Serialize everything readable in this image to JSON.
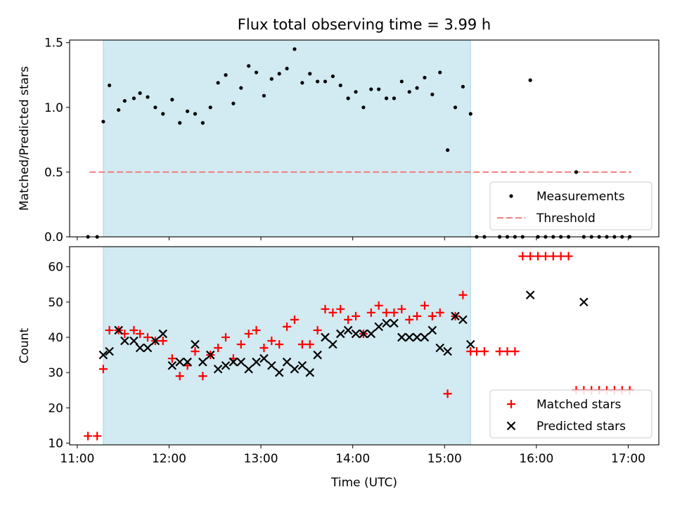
{
  "title": "Flux total observing time = 3.99 h",
  "shade_color": "#add8e6",
  "threshold_color": "#f08080",
  "chart_data": [
    {
      "type": "scatter",
      "ylabel": "Matched/Predicted stars",
      "xlabel": "",
      "xlim": [
        "10:55",
        "17:20"
      ],
      "ylim": [
        0,
        1.52
      ],
      "yticks": [
        "0.0",
        "0.5",
        "1.0",
        "1.5"
      ],
      "ytick_values": [
        0,
        0.5,
        1.0,
        1.5
      ],
      "shaded_span": [
        "11:17",
        "15:17"
      ],
      "threshold": {
        "y": 0.5,
        "x": [
          "11:08",
          "17:02"
        ]
      },
      "legend": {
        "placement": "lower right",
        "entries": [
          "Measurements",
          "Threshold"
        ]
      },
      "series": [
        {
          "name": "Measurements",
          "marker": "dot",
          "color": "#000000",
          "x": [
            "11:07",
            "11:13",
            "11:17",
            "11:21",
            "11:27",
            "11:31",
            "11:37",
            "11:41",
            "11:46",
            "11:51",
            "11:56",
            "12:02",
            "12:07",
            "12:12",
            "12:17",
            "12:22",
            "12:27",
            "12:32",
            "12:37",
            "12:42",
            "12:47",
            "12:52",
            "12:57",
            "13:02",
            "13:07",
            "13:12",
            "13:17",
            "13:22",
            "13:27",
            "13:32",
            "13:37",
            "13:42",
            "13:47",
            "13:52",
            "13:57",
            "14:02",
            "14:07",
            "14:12",
            "14:17",
            "14:22",
            "14:27",
            "14:32",
            "14:37",
            "14:42",
            "14:47",
            "14:52",
            "14:57",
            "15:02",
            "15:07",
            "15:12",
            "15:17",
            "15:21",
            "15:26",
            "15:36",
            "15:41",
            "15:46",
            "15:51",
            "15:56",
            "16:01",
            "16:06",
            "16:11",
            "16:16",
            "16:21",
            "16:26",
            "16:31",
            "16:36",
            "16:41",
            "16:46",
            "16:51",
            "16:56",
            "17:01"
          ],
          "y": [
            0.0,
            0.0,
            0.89,
            1.17,
            0.98,
            1.05,
            1.07,
            1.11,
            1.08,
            1.0,
            0.95,
            1.06,
            0.88,
            0.97,
            0.95,
            0.88,
            1.0,
            1.19,
            1.25,
            1.03,
            1.15,
            1.32,
            1.27,
            1.09,
            1.22,
            1.26,
            1.3,
            1.45,
            1.19,
            1.26,
            1.2,
            1.2,
            1.24,
            1.17,
            1.07,
            1.12,
            1.0,
            1.14,
            1.14,
            1.07,
            1.07,
            1.2,
            1.12,
            1.15,
            1.23,
            1.1,
            1.27,
            0.67,
            1.0,
            1.16,
            0.95,
            0.0,
            0.0,
            0.0,
            0.0,
            0.0,
            0.0,
            1.21,
            0.0,
            0.0,
            0.0,
            0.0,
            0.0,
            0.5,
            0.0,
            0.0,
            0.0,
            0.0,
            0.0,
            0.0,
            0.0
          ]
        }
      ]
    },
    {
      "type": "scatter",
      "ylabel": "Count",
      "xlabel": "Time (UTC)",
      "xlim": [
        "10:55",
        "17:20"
      ],
      "ylim": [
        9.5,
        65.7
      ],
      "yticks": [
        "10",
        "20",
        "30",
        "40",
        "50",
        "60"
      ],
      "ytick_values": [
        10,
        20,
        30,
        40,
        50,
        60
      ],
      "xticks": [
        "11:00",
        "12:00",
        "13:00",
        "14:00",
        "15:00",
        "16:00",
        "17:00"
      ],
      "shaded_span": [
        "11:17",
        "15:17"
      ],
      "legend": {
        "placement": "lower right",
        "entries": [
          "Matched stars",
          "Predicted stars"
        ]
      },
      "series": [
        {
          "name": "Matched stars",
          "marker": "plus",
          "color": "#ff0000",
          "x": [
            "11:07",
            "11:13",
            "11:17",
            "11:21",
            "11:27",
            "11:31",
            "11:37",
            "11:41",
            "11:46",
            "11:51",
            "11:56",
            "12:02",
            "12:07",
            "12:12",
            "12:17",
            "12:22",
            "12:27",
            "12:32",
            "12:37",
            "12:42",
            "12:47",
            "12:52",
            "12:57",
            "13:02",
            "13:07",
            "13:12",
            "13:17",
            "13:22",
            "13:27",
            "13:32",
            "13:37",
            "13:42",
            "13:47",
            "13:52",
            "13:57",
            "14:02",
            "14:07",
            "14:12",
            "14:17",
            "14:22",
            "14:27",
            "14:32",
            "14:37",
            "14:42",
            "14:47",
            "14:52",
            "14:57",
            "15:02",
            "15:07",
            "15:12",
            "15:17",
            "15:21",
            "15:26",
            "15:36",
            "15:41",
            "15:46",
            "15:51",
            "15:56",
            "16:01",
            "16:06",
            "16:11",
            "16:16",
            "16:21",
            "16:26",
            "16:31",
            "16:36",
            "16:41",
            "16:46",
            "16:51",
            "16:56",
            "17:01"
          ],
          "y": [
            12,
            12,
            31,
            42,
            42,
            41,
            42,
            41,
            40,
            39,
            39,
            34,
            29,
            32,
            36,
            29,
            35,
            37,
            40,
            34,
            38,
            41,
            42,
            37,
            39,
            38,
            43,
            45,
            38,
            38,
            42,
            48,
            47,
            48,
            45,
            46,
            41,
            47,
            49,
            47,
            47,
            48,
            45,
            46,
            49,
            46,
            47,
            24,
            46,
            52,
            36,
            36,
            36,
            36,
            36,
            36,
            63,
            63,
            63,
            63,
            63,
            63,
            63,
            25,
            25,
            25,
            25,
            25,
            25,
            25,
            25
          ]
        },
        {
          "name": "Predicted stars",
          "marker": "cross",
          "color": "#000000",
          "x": [
            "11:17",
            "11:21",
            "11:27",
            "11:31",
            "11:37",
            "11:41",
            "11:46",
            "11:51",
            "11:56",
            "12:02",
            "12:07",
            "12:12",
            "12:17",
            "12:22",
            "12:27",
            "12:32",
            "12:37",
            "12:42",
            "12:47",
            "12:52",
            "12:57",
            "13:02",
            "13:07",
            "13:12",
            "13:17",
            "13:22",
            "13:27",
            "13:32",
            "13:37",
            "13:42",
            "13:47",
            "13:52",
            "13:57",
            "14:02",
            "14:07",
            "14:12",
            "14:17",
            "14:22",
            "14:27",
            "14:32",
            "14:37",
            "14:42",
            "14:47",
            "14:52",
            "14:57",
            "15:02",
            "15:07",
            "15:12",
            "15:17",
            "15:56",
            "16:31"
          ],
          "y": [
            35,
            36,
            42,
            39,
            39,
            37,
            37,
            39,
            41,
            32,
            33,
            33,
            38,
            33,
            35,
            31,
            32,
            33,
            33,
            31,
            33,
            34,
            32,
            30,
            33,
            31,
            32,
            30,
            35,
            40,
            38,
            41,
            42,
            41,
            41,
            41,
            43,
            44,
            44,
            40,
            40,
            40,
            40,
            42,
            37,
            36,
            46,
            45,
            38,
            52,
            50
          ]
        }
      ]
    }
  ]
}
